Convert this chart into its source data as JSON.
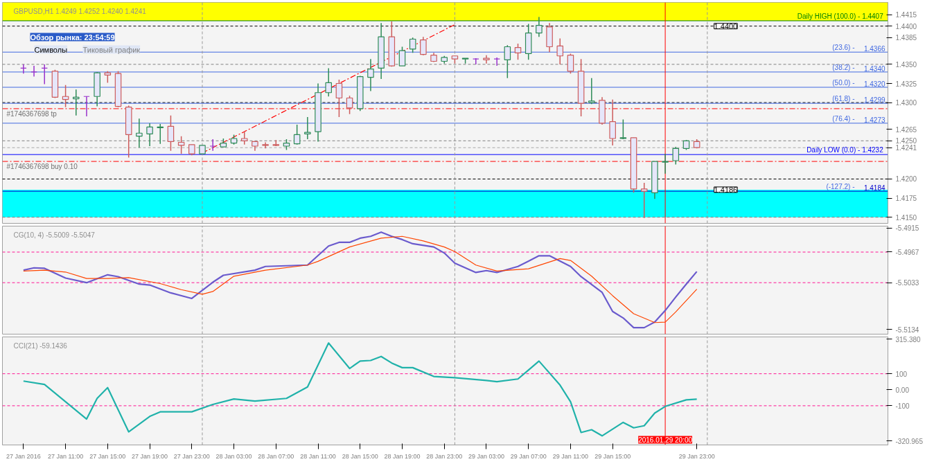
{
  "chart_data": [
    {
      "type": "candlestick",
      "title": "GBPUSD,H1  1.4249 1.4252 1.4240 1.4241",
      "tick_labels": "y",
      "xlim": [
        "2016-01-27T05:00",
        "2016-01-30T17:10"
      ],
      "ylim": [
        1.4142,
        1.4431
      ],
      "yticks": [
        1.4415,
        1.4385,
        1.4325,
        1.4265,
        1.4175
      ],
      "x": [
        "2016-01-27T07:00",
        "2016-01-27T08:00",
        "2016-01-27T09:00",
        "2016-01-27T10:00",
        "2016-01-27T11:00",
        "2016-01-27T12:00",
        "2016-01-27T13:00",
        "2016-01-27T14:00",
        "2016-01-27T15:00",
        "2016-01-27T16:00",
        "2016-01-27T17:00",
        "2016-01-27T18:00",
        "2016-01-27T19:00",
        "2016-01-27T20:00",
        "2016-01-27T21:00",
        "2016-01-27T22:00",
        "2016-01-27T23:00",
        "2016-01-28T00:00",
        "2016-01-28T01:00",
        "2016-01-28T02:00",
        "2016-01-28T03:00",
        "2016-01-28T04:00",
        "2016-01-28T05:00",
        "2016-01-28T06:00",
        "2016-01-28T07:00",
        "2016-01-28T08:00",
        "2016-01-28T09:00",
        "2016-01-28T10:00",
        "2016-01-28T11:00",
        "2016-01-28T12:00",
        "2016-01-28T13:00",
        "2016-01-28T14:00",
        "2016-01-28T15:00",
        "2016-01-28T16:00",
        "2016-01-28T17:00",
        "2016-01-28T18:00",
        "2016-01-28T19:00",
        "2016-01-28T20:00",
        "2016-01-28T21:00",
        "2016-01-28T22:00",
        "2016-01-28T23:00",
        "2016-01-29T00:00",
        "2016-01-29T01:00",
        "2016-01-29T02:00",
        "2016-01-29T03:00",
        "2016-01-29T04:00",
        "2016-01-29T05:00",
        "2016-01-29T06:00",
        "2016-01-29T07:00",
        "2016-01-29T08:00",
        "2016-01-29T09:00",
        "2016-01-29T10:00",
        "2016-01-29T11:00",
        "2016-01-29T12:00",
        "2016-01-29T13:00",
        "2016-01-29T14:00",
        "2016-01-29T15:00",
        "2016-01-29T16:00",
        "2016-01-29T17:00",
        "2016-01-29T18:00",
        "2016-01-29T19:00",
        "2016-01-29T20:00",
        "2016-01-29T21:00",
        "2016-01-29T22:00",
        "2016-01-29T23:00"
      ],
      "ohlc": [
        [
          1.4345,
          1.435,
          1.4338,
          1.4345
        ],
        [
          1.434,
          1.4348,
          1.4334,
          1.434
        ],
        [
          1.4345,
          1.435,
          1.4324,
          1.4345
        ],
        [
          1.4341,
          1.4343,
          1.4306,
          1.4307
        ],
        [
          1.4308,
          1.4323,
          1.4294,
          1.4304
        ],
        [
          1.4305,
          1.4317,
          1.4283,
          1.4307
        ],
        [
          1.4308,
          1.4308,
          1.4282,
          1.4308
        ],
        [
          1.4308,
          1.434,
          1.4295,
          1.4339
        ],
        [
          1.4339,
          1.4341,
          1.4326,
          1.4336
        ],
        [
          1.4338,
          1.4341,
          1.4294,
          1.4295
        ],
        [
          1.4294,
          1.4296,
          1.4228,
          1.4258
        ],
        [
          1.4256,
          1.4279,
          1.4241,
          1.426
        ],
        [
          1.4259,
          1.4273,
          1.4243,
          1.4268
        ],
        [
          1.4267,
          1.4272,
          1.4246,
          1.4268
        ],
        [
          1.4269,
          1.4283,
          1.4237,
          1.4249
        ],
        [
          1.4248,
          1.4256,
          1.4233,
          1.4244
        ],
        [
          1.4245,
          1.4245,
          1.4231,
          1.4233
        ],
        [
          1.4233,
          1.4244,
          1.4233,
          1.4244
        ],
        [
          1.4243,
          1.4252,
          1.4237,
          1.4243
        ],
        [
          1.4242,
          1.4253,
          1.4242,
          1.4247
        ],
        [
          1.4247,
          1.4258,
          1.4245,
          1.4253
        ],
        [
          1.4253,
          1.4262,
          1.4245,
          1.425
        ],
        [
          1.4249,
          1.4249,
          1.4237,
          1.4243
        ],
        [
          1.4245,
          1.4248,
          1.424,
          1.4244
        ],
        [
          1.4245,
          1.4251,
          1.4243,
          1.4244
        ],
        [
          1.4243,
          1.4252,
          1.4238,
          1.4247
        ],
        [
          1.4246,
          1.4271,
          1.4245,
          1.4258
        ],
        [
          1.4259,
          1.4281,
          1.4252,
          1.4261
        ],
        [
          1.4262,
          1.4325,
          1.4249,
          1.4313
        ],
        [
          1.4313,
          1.4345,
          1.4308,
          1.4326
        ],
        [
          1.4325,
          1.433,
          1.4281,
          1.4306
        ],
        [
          1.4306,
          1.4309,
          1.4285,
          1.4293
        ],
        [
          1.4292,
          1.4335,
          1.4289,
          1.4334
        ],
        [
          1.4333,
          1.4357,
          1.4315,
          1.4344
        ],
        [
          1.4345,
          1.4404,
          1.4331,
          1.4386
        ],
        [
          1.4386,
          1.4406,
          1.4347,
          1.4348
        ],
        [
          1.4348,
          1.4373,
          1.4348,
          1.4368
        ],
        [
          1.437,
          1.4385,
          1.4365,
          1.4383
        ],
        [
          1.4382,
          1.4386,
          1.4362,
          1.4363
        ],
        [
          1.4362,
          1.4365,
          1.4353,
          1.4354
        ],
        [
          1.4354,
          1.4361,
          1.4351,
          1.4359
        ],
        [
          1.4361,
          1.4361,
          1.4351,
          1.4357
        ],
        [
          1.4357,
          1.4358,
          1.4351,
          1.4358
        ],
        [
          1.4357,
          1.4358,
          1.435,
          1.4357
        ],
        [
          1.4358,
          1.4362,
          1.4351,
          1.4356
        ],
        [
          1.4357,
          1.4359,
          1.4348,
          1.4357
        ],
        [
          1.4356,
          1.4375,
          1.4332,
          1.4373
        ],
        [
          1.4372,
          1.4377,
          1.4356,
          1.4365
        ],
        [
          1.4364,
          1.4403,
          1.4356,
          1.4391
        ],
        [
          1.4391,
          1.4412,
          1.4386,
          1.4401
        ],
        [
          1.4399,
          1.4404,
          1.4366,
          1.4373
        ],
        [
          1.4374,
          1.4384,
          1.435,
          1.4361
        ],
        [
          1.4362,
          1.4364,
          1.4338,
          1.4341
        ],
        [
          1.4341,
          1.4357,
          1.4282,
          1.4299
        ],
        [
          1.43,
          1.4332,
          1.4298,
          1.4302
        ],
        [
          1.4303,
          1.4307,
          1.4271,
          1.4273
        ],
        [
          1.4275,
          1.4304,
          1.4244,
          1.4253
        ],
        [
          1.4253,
          1.4278,
          1.4252,
          1.4254
        ],
        [
          1.4254,
          1.4254,
          1.4182,
          1.4187
        ],
        [
          1.4187,
          1.4195,
          1.4149,
          1.4184
        ],
        [
          1.4182,
          1.4223,
          1.4174,
          1.4223
        ],
        [
          1.4222,
          1.4233,
          1.4207,
          1.4223
        ],
        [
          1.4224,
          1.4242,
          1.4219,
          1.424
        ],
        [
          1.424,
          1.4251,
          1.4238,
          1.425
        ],
        [
          1.4249,
          1.4252,
          1.424,
          1.4241
        ]
      ],
      "colors": [
        "#9932cc",
        "#9932cc",
        "#9932cc",
        "#cd5c5c",
        "#cd5c5c",
        "#2e8b57",
        "#9932cc",
        "#2e8b57",
        "#cd5c5c",
        "#cd5c5c",
        "#cd5c5c",
        "#2e8b57",
        "#2e8b57",
        "#2e8b57",
        "#cd5c5c",
        "#cd5c5c",
        "#cd5c5c",
        "#2e8b57",
        "#9932cc",
        "#2e8b57",
        "#2e8b57",
        "#cd5c5c",
        "#cd5c5c",
        "#cd5c5c",
        "#cd5c5c",
        "#2e8b57",
        "#2e8b57",
        "#2e8b57",
        "#2e8b57",
        "#2e8b57",
        "#cd5c5c",
        "#cd5c5c",
        "#2e8b57",
        "#2e8b57",
        "#2e8b57",
        "#cd5c5c",
        "#2e8b57",
        "#2e8b57",
        "#cd5c5c",
        "#cd5c5c",
        "#2e8b57",
        "#cd5c5c",
        "#2e8b57",
        "#9932cc",
        "#cd5c5c",
        "#9932cc",
        "#2e8b57",
        "#cd5c5c",
        "#2e8b57",
        "#2e8b57",
        "#cd5c5c",
        "#cd5c5c",
        "#cd5c5c",
        "#cd5c5c",
        "#2e8b57",
        "#cd5c5c",
        "#cd5c5c",
        "#2e8b57",
        "#cd5c5c",
        "#cd5c5c",
        "#2e8b57",
        "#2e8b57",
        "#2e8b57",
        "#2e8b57",
        "#cd5c5c"
      ],
      "series": [
        {
          "type": "line",
          "color": "#ff0000",
          "line_style": "dotted",
          "x": [
            "2016-01-28T00:00",
            "2016-01-29T00:00"
          ],
          "values": [
            1.4234,
            1.4402
          ]
        }
      ],
      "bands": [
        {
          "axis": "y",
          "from": 1.4407,
          "to": 1.4431,
          "color": "#ffff00"
        },
        {
          "axis": "y",
          "from": 1.415,
          "to": 1.4186,
          "color": "#00ffff"
        }
      ],
      "ref_lines": [
        {
          "axis": "y",
          "value": 1.44,
          "label": "1.4400",
          "color": "#000000",
          "line_style": "dashed"
        },
        {
          "axis": "y",
          "value": 1.435,
          "label": "1.4350",
          "color": "#808080",
          "line_style": "dashed"
        },
        {
          "axis": "y",
          "value": 1.43,
          "label": "1.4300",
          "color": "#000000",
          "line_style": "dashed"
        },
        {
          "axis": "y",
          "value": 1.425,
          "label": "1.4250",
          "color": "#808080",
          "line_style": "dashed"
        },
        {
          "axis": "y",
          "value": 1.4241,
          "label": "1.4241",
          "color": "#a9a9a9",
          "line_style": "dashed"
        },
        {
          "axis": "y",
          "value": 1.42,
          "label": "1.4200",
          "color": "#000000",
          "line_style": "dashed"
        },
        {
          "axis": "y",
          "value": 1.415,
          "label": "1.4150",
          "color": "#808080",
          "line_style": "dashed"
        },
        {
          "axis": "y",
          "value": 1.4407,
          "label": "Daily HIGH (100.0) -  1.4407",
          "color": "#008000",
          "line_style": "solid"
        },
        {
          "axis": "y",
          "value": 1.4366,
          "label": "1.4366",
          "color": "#4169e1",
          "line_style": "solid"
        },
        {
          "axis": "y",
          "value": 1.434,
          "label": "1.4340",
          "color": "#4169e1",
          "line_style": "solid"
        },
        {
          "axis": "y",
          "value": 1.432,
          "label": "1.4320",
          "color": "#4169e1",
          "line_style": "solid"
        },
        {
          "axis": "y",
          "value": 1.4299,
          "label": "1.4299",
          "color": "#4169e1",
          "line_style": "solid"
        },
        {
          "axis": "y",
          "value": 1.4273,
          "label": "1.4273",
          "color": "#4169e1",
          "line_style": "solid"
        },
        {
          "axis": "y",
          "value": 1.4232,
          "label": "Daily LOW (0.0) -  1.4232",
          "color": "#0000ff",
          "line_style": "solid"
        },
        {
          "axis": "y",
          "value": 1.4184,
          "label": "1.4184",
          "color": "#0000cd",
          "line_style": "solid"
        },
        {
          "axis": "y",
          "value": 1.4292,
          "label": "#1746367698 tp",
          "color": "#ff0000",
          "line_style": "dotted"
        },
        {
          "axis": "y",
          "value": 1.4223,
          "label": "#1746367698 buy 0.10",
          "color": "#ff0000",
          "line_style": "dotted"
        },
        {
          "axis": "x",
          "value": "2016-01-28T00:00",
          "color": "#999999",
          "line_style": "dashed"
        },
        {
          "axis": "x",
          "value": "2016-01-29T00:00",
          "color": "#999999",
          "line_style": "dashed"
        },
        {
          "axis": "x",
          "value": "2016-01-30T00:00",
          "color": "#999999",
          "line_style": "dashed"
        },
        {
          "axis": "x",
          "value": "2016-01-29T20:00",
          "color": "#ff0000",
          "line_style": "solid"
        }
      ],
      "annotations": [
        "Обзор рынка: 23:54:59",
        "Символы",
        "Тиковый график",
        {
          "text": "1.4400",
          "x": "2016-01-30T01:45",
          "y": 1.44
        },
        {
          "text": "1.4186",
          "x": "2016-01-30T01:45",
          "y": 1.4186
        },
        {
          "text": "(23.6) -",
          "y": 1.4366
        },
        {
          "text": "(38.2) -",
          "y": 1.434
        },
        {
          "text": "(50.0) -",
          "y": 1.432
        },
        {
          "text": "(61.8) -",
          "y": 1.4299
        },
        {
          "text": "(76.4) -",
          "y": 1.4273
        },
        {
          "text": "(-127.2) -",
          "y": 1.4184
        }
      ]
    },
    {
      "type": "line",
      "title": "CG(10, 4) -5.5009 -5.5047",
      "tick_labels": "y",
      "xlim": [
        "2016-01-27T05:00",
        "2016-01-30T17:10"
      ],
      "ylim": [
        -5.5144,
        -5.4911
      ],
      "yticks": [
        -5.4915,
        -5.4967,
        -5.5033,
        -5.5134
      ],
      "series": [
        {
          "color": "#6a5acd",
          "x": [
            "2016-01-27T07:00",
            "2016-01-27T08:00",
            "2016-01-27T09:00",
            "2016-01-27T11:00",
            "2016-01-27T13:00",
            "2016-01-27T15:00",
            "2016-01-27T16:00",
            "2016-01-27T18:00",
            "2016-01-27T19:00",
            "2016-01-27T21:00",
            "2016-01-27T23:00",
            "2016-01-28T01:00",
            "2016-01-28T02:00",
            "2016-01-28T05:00",
            "2016-01-28T06:00",
            "2016-01-28T10:00",
            "2016-01-28T12:00",
            "2016-01-28T13:00",
            "2016-01-28T14:00",
            "2016-01-28T15:00",
            "2016-01-28T16:00",
            "2016-01-28T17:00",
            "2016-01-28T18:00",
            "2016-01-28T19:00",
            "2016-01-28T20:00",
            "2016-01-28T22:00",
            "2016-01-28T23:00",
            "2016-01-29T00:00",
            "2016-01-29T02:00",
            "2016-01-29T03:00",
            "2016-01-29T04:00",
            "2016-01-29T06:00",
            "2016-01-29T08:00",
            "2016-01-29T09:00",
            "2016-01-29T11:00",
            "2016-01-29T12:00",
            "2016-01-29T14:00",
            "2016-01-29T15:00",
            "2016-01-29T16:00",
            "2016-01-29T17:00",
            "2016-01-29T18:00",
            "2016-01-29T19:00",
            "2016-01-29T20:00",
            "2016-01-29T21:00",
            "2016-01-29T22:00",
            "2016-01-29T23:00"
          ],
          "values": [
            -5.5006,
            -5.5001,
            -5.5002,
            -5.5023,
            -5.5033,
            -5.5016,
            -5.502,
            -5.5036,
            -5.5038,
            -5.5055,
            -5.5067,
            -5.5032,
            -5.5017,
            -5.5006,
            -5.4998,
            -5.4995,
            -5.4954,
            -5.4946,
            -5.4946,
            -5.4937,
            -5.4933,
            -5.4924,
            -5.4933,
            -5.494,
            -5.4949,
            -5.4956,
            -5.4969,
            -5.4991,
            -5.5011,
            -5.5007,
            -5.5011,
            -5.4998,
            -5.4975,
            -5.4975,
            -5.4998,
            -5.502,
            -5.5054,
            -5.5095,
            -5.5109,
            -5.513,
            -5.513,
            -5.5118,
            -5.5093,
            -5.5064,
            -5.5036,
            -5.5009
          ]
        },
        {
          "color": "#ff4500",
          "x": [
            "2016-01-27T07:00",
            "2016-01-27T09:00",
            "2016-01-27T11:00",
            "2016-01-27T13:00",
            "2016-01-27T15:00",
            "2016-01-27T17:00",
            "2016-01-27T20:00",
            "2016-01-27T22:00",
            "2016-01-28T00:00",
            "2016-01-28T01:00",
            "2016-01-28T03:00",
            "2016-01-28T06:00",
            "2016-01-28T10:00",
            "2016-01-28T11:00",
            "2016-01-28T14:00",
            "2016-01-28T17:00",
            "2016-01-28T19:00",
            "2016-01-28T21:00",
            "2016-01-28T23:00",
            "2016-01-29T00:00",
            "2016-01-29T02:00",
            "2016-01-29T04:00",
            "2016-01-29T07:00",
            "2016-01-29T10:00",
            "2016-01-29T11:00",
            "2016-01-29T13:00",
            "2016-01-29T15:00",
            "2016-01-29T17:00",
            "2016-01-29T19:00",
            "2016-01-29T20:00",
            "2016-01-29T21:00",
            "2016-01-29T23:00"
          ],
          "values": [
            -5.5008,
            -5.5006,
            -5.501,
            -5.5024,
            -5.5024,
            -5.5022,
            -5.5035,
            -5.5048,
            -5.5058,
            -5.5052,
            -5.5019,
            -5.5006,
            -5.4995,
            -5.4987,
            -5.4956,
            -5.4937,
            -5.4933,
            -5.4943,
            -5.4956,
            -5.4966,
            -5.4995,
            -5.5008,
            -5.5003,
            -5.4981,
            -5.4985,
            -5.5019,
            -5.5061,
            -5.51,
            -5.5119,
            -5.5118,
            -5.5096,
            -5.5047
          ]
        }
      ],
      "ref_lines": [
        {
          "axis": "y",
          "value": -5.4967,
          "color": "#ff1493",
          "line_style": "dashed"
        },
        {
          "axis": "y",
          "value": -5.5033,
          "color": "#ff1493",
          "line_style": "dashed"
        },
        {
          "axis": "x",
          "value": "2016-01-28T00:00",
          "color": "#999999",
          "line_style": "dashed"
        },
        {
          "axis": "x",
          "value": "2016-01-29T00:00",
          "color": "#999999",
          "line_style": "dashed"
        },
        {
          "axis": "x",
          "value": "2016-01-30T00:00",
          "color": "#999999",
          "line_style": "dashed"
        },
        {
          "axis": "x",
          "value": "2016-01-29T20:00",
          "color": "#ff0000",
          "line_style": "solid"
        }
      ]
    },
    {
      "type": "line",
      "title": "CCI(21) -59.1436",
      "xlim": [
        "2016-01-27T05:00",
        "2016-01-30T17:10"
      ],
      "ylim": [
        -345,
        330
      ],
      "yticks": [
        {
          "value": 315.38,
          "label": "315.380"
        },
        100,
        {
          "value": 0,
          "label": "0.00"
        },
        -100,
        -320.965
      ],
      "xticks": [
        {
          "value": "2016-01-27T07:00",
          "label": "27 Jan 2016"
        },
        {
          "value": "2016-01-27T11:00",
          "label": "27 Jan 11:00"
        },
        {
          "value": "2016-01-27T15:00",
          "label": "27 Jan 15:00"
        },
        {
          "value": "2016-01-27T19:00",
          "label": "27 Jan 19:00"
        },
        {
          "value": "2016-01-27T23:00",
          "label": "27 Jan 23:00"
        },
        {
          "value": "2016-01-28T03:00",
          "label": "28 Jan 03:00"
        },
        {
          "value": "2016-01-28T07:00",
          "label": "28 Jan 07:00"
        },
        {
          "value": "2016-01-28T11:00",
          "label": "28 Jan 11:00"
        },
        {
          "value": "2016-01-28T15:00",
          "label": "28 Jan 15:00"
        },
        {
          "value": "2016-01-28T19:00",
          "label": "28 Jan 19:00"
        },
        {
          "value": "2016-01-28T23:00",
          "label": "28 Jan 23:00"
        },
        {
          "value": "2016-01-29T03:00",
          "label": "29 Jan 03:00"
        },
        {
          "value": "2016-01-29T07:00",
          "label": "29 Jan 07:00"
        },
        {
          "value": "2016-01-29T11:00",
          "label": "29 Jan 11:00"
        },
        {
          "value": "2016-01-29T15:00",
          "label": "29 Jan 15:00"
        },
        {
          "value": "2016-01-29T23:00",
          "label": "29 Jan 23:00"
        }
      ],
      "series": [
        {
          "color": "#20b2aa",
          "x": [
            "2016-01-27T07:00",
            "2016-01-27T09:00",
            "2016-01-27T13:00",
            "2016-01-27T14:00",
            "2016-01-27T15:00",
            "2016-01-27T17:00",
            "2016-01-27T19:00",
            "2016-01-27T20:00",
            "2016-01-27T23:00",
            "2016-01-28T01:00",
            "2016-01-28T03:00",
            "2016-01-28T05:00",
            "2016-01-28T08:00",
            "2016-01-28T10:00",
            "2016-01-28T12:00",
            "2016-01-28T14:00",
            "2016-01-28T15:00",
            "2016-01-28T16:00",
            "2016-01-28T17:00",
            "2016-01-28T18:00",
            "2016-01-28T19:00",
            "2016-01-28T20:00",
            "2016-01-28T22:00",
            "2016-01-29T00:00",
            "2016-01-29T03:00",
            "2016-01-29T04:00",
            "2016-01-29T06:00",
            "2016-01-29T08:00",
            "2016-01-29T10:00",
            "2016-01-29T11:00",
            "2016-01-29T12:00",
            "2016-01-29T13:00",
            "2016-01-29T14:00",
            "2016-01-29T16:00",
            "2016-01-29T17:00",
            "2016-01-29T18:00",
            "2016-01-29T19:00",
            "2016-01-29T20:00",
            "2016-01-29T22:00",
            "2016-01-29T23:00"
          ],
          "values": [
            54,
            33,
            -183,
            -54,
            13,
            -263,
            -167,
            -138,
            -138,
            -92,
            -58,
            -71,
            -54,
            17,
            292,
            133,
            179,
            183,
            208,
            167,
            138,
            138,
            83,
            75,
            58,
            50,
            67,
            179,
            29,
            -75,
            -267,
            -250,
            -288,
            -204,
            -238,
            -225,
            -146,
            -104,
            -63,
            -59
          ]
        }
      ],
      "ref_lines": [
        {
          "axis": "y",
          "value": 100,
          "color": "#ff1493",
          "line_style": "dashed"
        },
        {
          "axis": "y",
          "value": -100,
          "color": "#ff1493",
          "line_style": "dashed"
        },
        {
          "axis": "x",
          "value": "2016-01-28T00:00",
          "color": "#999999",
          "line_style": "dashed"
        },
        {
          "axis": "x",
          "value": "2016-01-29T00:00",
          "color": "#999999",
          "line_style": "dashed"
        },
        {
          "axis": "x",
          "value": "2016-01-30T00:00",
          "color": "#999999",
          "line_style": "dashed"
        },
        {
          "axis": "x",
          "value": "2016-01-29T20:00",
          "label": "2016.01.29 20:00",
          "color": "#ff0000",
          "line_style": "solid"
        }
      ]
    }
  ]
}
